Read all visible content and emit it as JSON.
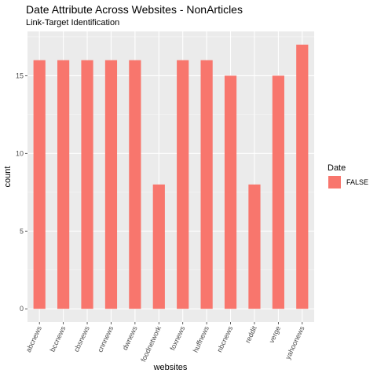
{
  "chart_data": {
    "type": "bar",
    "title": "Date Attribute Across Websites - NonArticles",
    "subtitle": "Link-Target Identification",
    "xlabel": "websites",
    "ylabel": "count",
    "categories": [
      "abcnews",
      "bccnews",
      "cbsnews",
      "cnnnews",
      "dwnews",
      "foodnetwork",
      "foxnews",
      "huffnews",
      "nbcnews",
      "reddit",
      "verge",
      "yahoonews"
    ],
    "series": [
      {
        "name": "FALSE",
        "values": [
          16,
          16,
          16,
          16,
          16,
          8,
          16,
          16,
          15,
          8,
          15,
          17
        ]
      }
    ],
    "ylim": [
      -0.85,
      17.85
    ],
    "yticks": [
      0,
      5,
      10,
      15
    ],
    "grid": true,
    "legend": {
      "title": "Date",
      "position": "right"
    },
    "colors": {
      "bar": "#F8766D",
      "panel": "#EBEBEB",
      "grid_major": "#FFFFFF"
    }
  }
}
